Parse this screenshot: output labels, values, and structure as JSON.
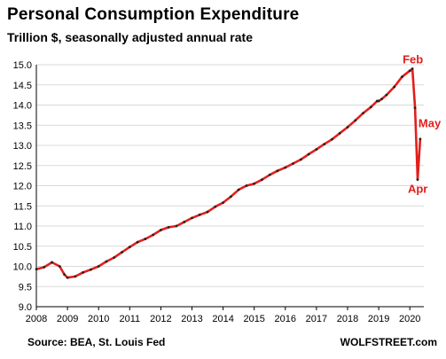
{
  "chart_data": {
    "type": "line",
    "title": "Personal Consumption Expenditure",
    "subtitle": "Trillion $, seasonally adjusted annual rate",
    "xlabel": "",
    "ylabel": "",
    "source": "Source: BEA, St. Louis Fed",
    "brand": "WOLFSTREET.com",
    "x_ticks": [
      "2008",
      "2009",
      "2010",
      "2011",
      "2012",
      "2013",
      "2014",
      "2015",
      "2016",
      "2017",
      "2018",
      "2019",
      "2020"
    ],
    "y_ticks": [
      "9.0",
      "9.5",
      "10.0",
      "10.5",
      "11.0",
      "11.5",
      "12.0",
      "12.5",
      "13.0",
      "13.5",
      "14.0",
      "14.5",
      "15.0"
    ],
    "xlim": [
      2008.0,
      2020.45
    ],
    "ylim": [
      9.0,
      15.0
    ],
    "grid": true,
    "line_color": "#e0201c",
    "marker_color": "#222222",
    "grid_color": "#d9d9d9",
    "x": [
      2008.0,
      2008.25,
      2008.5,
      2008.75,
      2008.9,
      2009.0,
      2009.25,
      2009.5,
      2009.75,
      2010.0,
      2010.25,
      2010.5,
      2010.75,
      2011.0,
      2011.25,
      2011.5,
      2011.75,
      2012.0,
      2012.25,
      2012.5,
      2012.75,
      2013.0,
      2013.25,
      2013.5,
      2013.75,
      2014.0,
      2014.25,
      2014.5,
      2014.75,
      2015.0,
      2015.25,
      2015.5,
      2015.75,
      2016.0,
      2016.25,
      2016.5,
      2016.75,
      2017.0,
      2017.25,
      2017.5,
      2017.75,
      2018.0,
      2018.25,
      2018.5,
      2018.75,
      2018.95,
      2019.0,
      2019.1,
      2019.25,
      2019.5,
      2019.75,
      2020.0,
      2020.083,
      2020.167,
      2020.25,
      2020.333
    ],
    "values": [
      9.93,
      9.98,
      10.1,
      10.0,
      9.8,
      9.72,
      9.75,
      9.85,
      9.92,
      10.0,
      10.12,
      10.22,
      10.35,
      10.48,
      10.6,
      10.68,
      10.78,
      10.9,
      10.97,
      11.0,
      11.1,
      11.2,
      11.28,
      11.35,
      11.48,
      11.58,
      11.73,
      11.9,
      12.0,
      12.05,
      12.15,
      12.27,
      12.37,
      12.45,
      12.55,
      12.65,
      12.78,
      12.9,
      13.03,
      13.15,
      13.3,
      13.45,
      13.62,
      13.8,
      13.95,
      14.1,
      14.1,
      14.15,
      14.25,
      14.45,
      14.7,
      14.85,
      14.9,
      13.93,
      12.15,
      13.16
    ],
    "annotations": [
      {
        "label": "Feb",
        "x": 2020.083,
        "y": 14.9
      },
      {
        "label": "Apr",
        "x": 2020.25,
        "y": 12.15
      },
      {
        "label": "May",
        "x": 2020.333,
        "y": 13.16
      }
    ]
  }
}
